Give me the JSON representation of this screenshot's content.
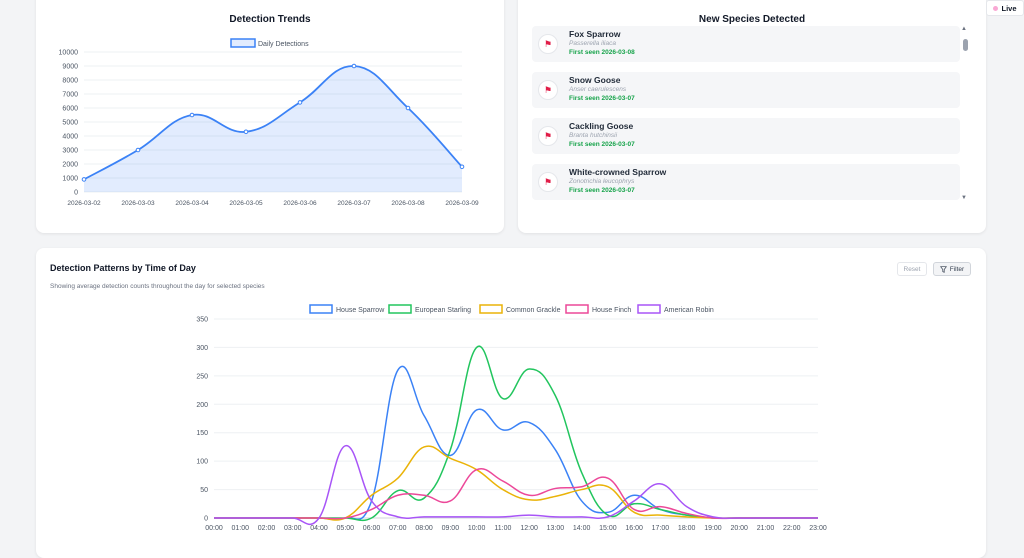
{
  "live_label": "Live",
  "trends": {
    "title": "Detection Trends",
    "chart_data": {
      "type": "area",
      "title": "Detection Trends",
      "categories": [
        "2026-03-02",
        "2026-03-03",
        "2026-03-04",
        "2026-03-05",
        "2026-03-06",
        "2026-03-07",
        "2026-03-08",
        "2026-03-09"
      ],
      "series": [
        {
          "name": "Daily Detections",
          "values": [
            900,
            3000,
            5500,
            4300,
            6400,
            9000,
            6000,
            1800
          ],
          "color": "#3b82f6"
        }
      ],
      "ylim": [
        0,
        10000
      ],
      "yticks": [
        0,
        1000,
        2000,
        3000,
        4000,
        5000,
        6000,
        7000,
        8000,
        9000,
        10000
      ],
      "grid": true,
      "legend": "top"
    }
  },
  "species": {
    "title": "New Species Detected",
    "items": [
      {
        "name": "Fox Sparrow",
        "scientific": "Passerella iliaca",
        "first_seen": "First seen 2026-03-08"
      },
      {
        "name": "Snow Goose",
        "scientific": "Anser caerulescens",
        "first_seen": "First seen 2026-03-07"
      },
      {
        "name": "Cackling Goose",
        "scientific": "Branta hutchinsii",
        "first_seen": "First seen 2026-03-07"
      },
      {
        "name": "White-crowned Sparrow",
        "scientific": "Zonotrichia leucophrys",
        "first_seen": "First seen 2026-03-07"
      }
    ]
  },
  "patterns": {
    "title": "Detection Patterns by Time of Day",
    "subtitle": "Showing average detection counts throughout the day for selected species",
    "reset_label": "Reset",
    "filter_label": "Filter",
    "chart_data": {
      "type": "line",
      "x": [
        "00:00",
        "01:00",
        "02:00",
        "03:00",
        "04:00",
        "05:00",
        "06:00",
        "07:00",
        "08:00",
        "09:00",
        "10:00",
        "11:00",
        "12:00",
        "13:00",
        "14:00",
        "15:00",
        "16:00",
        "17:00",
        "18:00",
        "19:00",
        "20:00",
        "21:00",
        "22:00",
        "23:00"
      ],
      "ylim": [
        0,
        350
      ],
      "yticks": [
        0,
        50,
        100,
        150,
        200,
        250,
        300,
        350
      ],
      "grid": true,
      "legend": "top",
      "series": [
        {
          "name": "House Sparrow",
          "color": "#3b82f6",
          "values": [
            0,
            0,
            0,
            0,
            0,
            0,
            30,
            260,
            180,
            110,
            190,
            155,
            168,
            120,
            30,
            10,
            40,
            15,
            5,
            0,
            0,
            0,
            0,
            0
          ]
        },
        {
          "name": "European Starling",
          "color": "#22c55e",
          "values": [
            0,
            0,
            0,
            0,
            0,
            0,
            0,
            48,
            35,
            120,
            300,
            210,
            262,
            215,
            80,
            5,
            25,
            15,
            5,
            0,
            0,
            0,
            0,
            0
          ]
        },
        {
          "name": "Common Grackle",
          "color": "#eab308",
          "values": [
            0,
            0,
            0,
            0,
            0,
            0,
            40,
            70,
            125,
            105,
            85,
            50,
            32,
            38,
            50,
            55,
            10,
            5,
            2,
            0,
            0,
            0,
            0,
            0
          ]
        },
        {
          "name": "House Finch",
          "color": "#ec4899",
          "values": [
            0,
            0,
            0,
            0,
            0,
            0,
            15,
            40,
            40,
            30,
            85,
            65,
            40,
            52,
            55,
            70,
            15,
            20,
            8,
            0,
            0,
            0,
            0,
            0
          ]
        },
        {
          "name": "American Robin",
          "color": "#a855f7",
          "values": [
            0,
            0,
            0,
            0,
            0,
            127,
            30,
            2,
            2,
            2,
            2,
            2,
            5,
            2,
            2,
            2,
            30,
            60,
            20,
            2,
            0,
            0,
            0,
            0
          ]
        }
      ]
    }
  }
}
